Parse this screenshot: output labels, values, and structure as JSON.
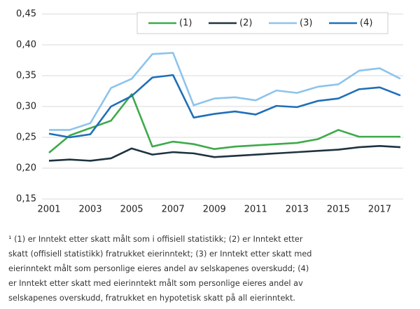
{
  "chart_data": {
    "type": "line",
    "x": [
      2001,
      2002,
      2003,
      2004,
      2005,
      2006,
      2007,
      2008,
      2009,
      2010,
      2011,
      2012,
      2013,
      2014,
      2015,
      2016,
      2017,
      2018
    ],
    "series": [
      {
        "name": "(1)",
        "color": "#3daa4a",
        "values": [
          0.225,
          0.253,
          0.265,
          0.277,
          0.32,
          0.235,
          0.243,
          0.239,
          0.231,
          0.235,
          0.237,
          0.239,
          0.241,
          0.247,
          0.262,
          0.251,
          0.251,
          0.251
        ]
      },
      {
        "name": "(2)",
        "color": "#1f3340",
        "values": [
          0.212,
          0.214,
          0.212,
          0.216,
          0.232,
          0.222,
          0.226,
          0.224,
          0.218,
          0.22,
          0.222,
          0.224,
          0.226,
          0.228,
          0.23,
          0.234,
          0.236,
          0.234
        ]
      },
      {
        "name": "(3)",
        "color": "#8cc4ec",
        "values": [
          0.262,
          0.262,
          0.273,
          0.33,
          0.345,
          0.385,
          0.387,
          0.302,
          0.313,
          0.315,
          0.31,
          0.326,
          0.322,
          0.332,
          0.336,
          0.358,
          0.362,
          0.345
        ]
      },
      {
        "name": "(4)",
        "color": "#1f6fb8",
        "values": [
          0.256,
          0.25,
          0.255,
          0.3,
          0.317,
          0.347,
          0.351,
          0.282,
          0.288,
          0.292,
          0.287,
          0.301,
          0.299,
          0.309,
          0.313,
          0.328,
          0.331,
          0.318
        ]
      }
    ],
    "xlim": [
      2001,
      2018
    ],
    "xticks": [
      2001,
      2003,
      2005,
      2007,
      2009,
      2011,
      2013,
      2015,
      2017
    ],
    "ylim": [
      0.15,
      0.45
    ],
    "yticks": [
      {
        "value": 0.15,
        "label": "0,15"
      },
      {
        "value": 0.2,
        "label": "0,20"
      },
      {
        "value": 0.25,
        "label": "0,25"
      },
      {
        "value": 0.3,
        "label": "0,30"
      },
      {
        "value": 0.35,
        "label": "0,35"
      },
      {
        "value": 0.4,
        "label": "0,40"
      },
      {
        "value": 0.45,
        "label": "0,45"
      }
    ],
    "grid": true,
    "legend": "top",
    "footnote": [
      "¹ (1) er Inntekt etter skatt målt som i offisiell statistikk; (2) er Inntekt etter",
      "skatt (offisiell statistikk) fratrukket eierinntekt; (3) er Inntekt etter skatt med",
      "eierinntekt målt som personlige eieres andel av selskapenes overskudd; (4)",
      "er Inntekt etter skatt med eierinntekt målt som personlige eieres andel av",
      "selskapenes overskudd, fratrukket en hypotetisk skatt på all eierinntekt."
    ]
  }
}
